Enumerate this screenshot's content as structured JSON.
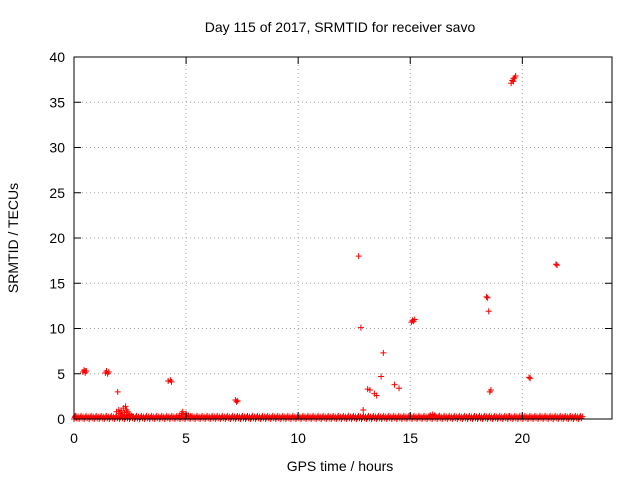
{
  "chart_data": {
    "type": "scatter",
    "title": "Day 115 of 2017, SRMTID for receiver savo",
    "xlabel": "GPS time / hours",
    "ylabel": "SRMTID / TECUs",
    "xlim": [
      0,
      24
    ],
    "ylim": [
      0,
      40
    ],
    "xticks": [
      0,
      5,
      10,
      15,
      20
    ],
    "yticks": [
      0,
      5,
      10,
      15,
      20,
      25,
      30,
      35,
      40
    ],
    "grid": true,
    "marker": "+",
    "colors": {
      "points": "#ff0000",
      "grid": "#a0a0a0",
      "axes": "#000000"
    },
    "series": [
      {
        "baseline_band": {
          "x_range": [
            0.0,
            22.7
          ],
          "y_range": [
            0.0,
            0.35
          ]
        },
        "points": [
          {
            "x": 0.05,
            "y": 0.3
          },
          {
            "x": 0.1,
            "y": 0.15
          },
          {
            "x": 0.4,
            "y": 5.2
          },
          {
            "x": 0.45,
            "y": 5.4
          },
          {
            "x": 0.5,
            "y": 5.3
          },
          {
            "x": 0.5,
            "y": 5.1
          },
          {
            "x": 0.55,
            "y": 5.3
          },
          {
            "x": 1.4,
            "y": 5.1
          },
          {
            "x": 1.45,
            "y": 5.3
          },
          {
            "x": 1.5,
            "y": 5.0
          },
          {
            "x": 1.55,
            "y": 5.2
          },
          {
            "x": 1.95,
            "y": 3.0
          },
          {
            "x": 1.9,
            "y": 0.8
          },
          {
            "x": 2.0,
            "y": 1.0
          },
          {
            "x": 2.05,
            "y": 0.6
          },
          {
            "x": 2.1,
            "y": 0.9
          },
          {
            "x": 2.15,
            "y": 0.5
          },
          {
            "x": 2.2,
            "y": 1.2
          },
          {
            "x": 2.25,
            "y": 0.7
          },
          {
            "x": 2.3,
            "y": 1.4
          },
          {
            "x": 2.35,
            "y": 1.0
          },
          {
            "x": 2.4,
            "y": 0.8
          },
          {
            "x": 2.45,
            "y": 0.4
          },
          {
            "x": 2.5,
            "y": 0.5
          },
          {
            "x": 2.6,
            "y": 0.3
          },
          {
            "x": 4.2,
            "y": 4.2
          },
          {
            "x": 4.3,
            "y": 4.3
          },
          {
            "x": 4.35,
            "y": 4.1
          },
          {
            "x": 4.7,
            "y": 0.4
          },
          {
            "x": 4.8,
            "y": 0.6
          },
          {
            "x": 4.85,
            "y": 0.8
          },
          {
            "x": 4.9,
            "y": 0.5
          },
          {
            "x": 5.0,
            "y": 0.6
          },
          {
            "x": 5.1,
            "y": 0.4
          },
          {
            "x": 5.2,
            "y": 0.3
          },
          {
            "x": 7.2,
            "y": 2.1
          },
          {
            "x": 7.25,
            "y": 1.9
          },
          {
            "x": 7.3,
            "y": 2.0
          },
          {
            "x": 12.7,
            "y": 18.0
          },
          {
            "x": 12.8,
            "y": 10.1
          },
          {
            "x": 12.9,
            "y": 1.0
          },
          {
            "x": 13.1,
            "y": 3.3
          },
          {
            "x": 13.2,
            "y": 3.2
          },
          {
            "x": 13.4,
            "y": 2.8
          },
          {
            "x": 13.5,
            "y": 2.6
          },
          {
            "x": 13.7,
            "y": 4.7
          },
          {
            "x": 13.8,
            "y": 7.3
          },
          {
            "x": 14.3,
            "y": 3.8
          },
          {
            "x": 14.5,
            "y": 3.4
          },
          {
            "x": 15.05,
            "y": 10.7
          },
          {
            "x": 15.1,
            "y": 10.9
          },
          {
            "x": 15.15,
            "y": 10.8
          },
          {
            "x": 15.2,
            "y": 11.0
          },
          {
            "x": 15.9,
            "y": 0.4
          },
          {
            "x": 16.0,
            "y": 0.5
          },
          {
            "x": 16.1,
            "y": 0.4
          },
          {
            "x": 16.3,
            "y": 0.35
          },
          {
            "x": 18.4,
            "y": 13.5
          },
          {
            "x": 18.45,
            "y": 13.4
          },
          {
            "x": 18.5,
            "y": 11.9
          },
          {
            "x": 18.55,
            "y": 3.0
          },
          {
            "x": 18.6,
            "y": 3.2
          },
          {
            "x": 19.4,
            "y": 0.3
          },
          {
            "x": 19.5,
            "y": 37.1
          },
          {
            "x": 19.55,
            "y": 37.4
          },
          {
            "x": 19.6,
            "y": 37.6
          },
          {
            "x": 19.65,
            "y": 37.7
          },
          {
            "x": 19.7,
            "y": 37.9
          },
          {
            "x": 19.6,
            "y": 37.3
          },
          {
            "x": 20.3,
            "y": 4.6
          },
          {
            "x": 20.35,
            "y": 4.5
          },
          {
            "x": 21.5,
            "y": 17.1
          },
          {
            "x": 21.55,
            "y": 17.0
          }
        ]
      }
    ]
  }
}
